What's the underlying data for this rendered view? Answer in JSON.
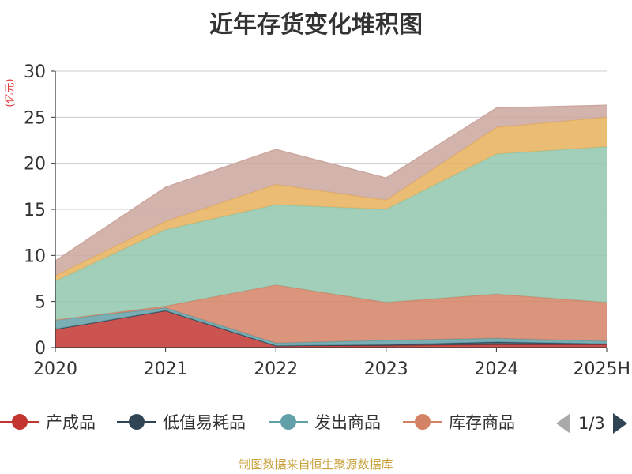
{
  "chart_data": {
    "type": "area",
    "stacked": true,
    "title": "近年存货变化堆积图",
    "ylabel": "(亿元)",
    "ylim": [
      0,
      30
    ],
    "yticks": [
      0,
      5,
      10,
      15,
      20,
      25,
      30
    ],
    "categories": [
      "2020",
      "2021",
      "2022",
      "2023",
      "2024",
      "2025H"
    ],
    "grid": true,
    "legend_position": "bottom",
    "series": [
      {
        "name": "产成品",
        "color": "#c23531",
        "values": [
          2.0,
          4.0,
          0.2,
          0.2,
          0.3,
          0.3
        ]
      },
      {
        "name": "低值易耗品",
        "color": "#2f4554",
        "values": [
          0.0,
          0.0,
          0.0,
          0.1,
          0.3,
          0.1
        ]
      },
      {
        "name": "发出商品",
        "color": "#61a0a8",
        "values": [
          1.0,
          0.3,
          0.3,
          0.5,
          0.4,
          0.3
        ]
      },
      {
        "name": "库存商品",
        "color": "#d48265",
        "values": [
          0.0,
          0.2,
          6.3,
          4.1,
          4.8,
          4.2
        ]
      },
      {
        "name": "",
        "color": "#91c7ae",
        "values": [
          4.2,
          8.3,
          8.7,
          10.1,
          15.2,
          16.9
        ]
      },
      {
        "name": "",
        "color": "#e7b05a",
        "values": [
          0.6,
          0.9,
          2.2,
          1.0,
          2.9,
          3.2
        ]
      },
      {
        "name": "",
        "color": "#cba79f",
        "values": [
          1.6,
          3.7,
          3.8,
          2.4,
          2.1,
          1.3
        ]
      }
    ]
  },
  "legend": {
    "items": [
      {
        "label": "产成品",
        "color": "#c23531"
      },
      {
        "label": "低值易耗品",
        "color": "#2f4554"
      },
      {
        "label": "发出商品",
        "color": "#61a0a8"
      },
      {
        "label": "库存商品",
        "color": "#d48265"
      }
    ],
    "page_text": "1/3"
  },
  "source": "制图数据来自恒生聚源数据库"
}
